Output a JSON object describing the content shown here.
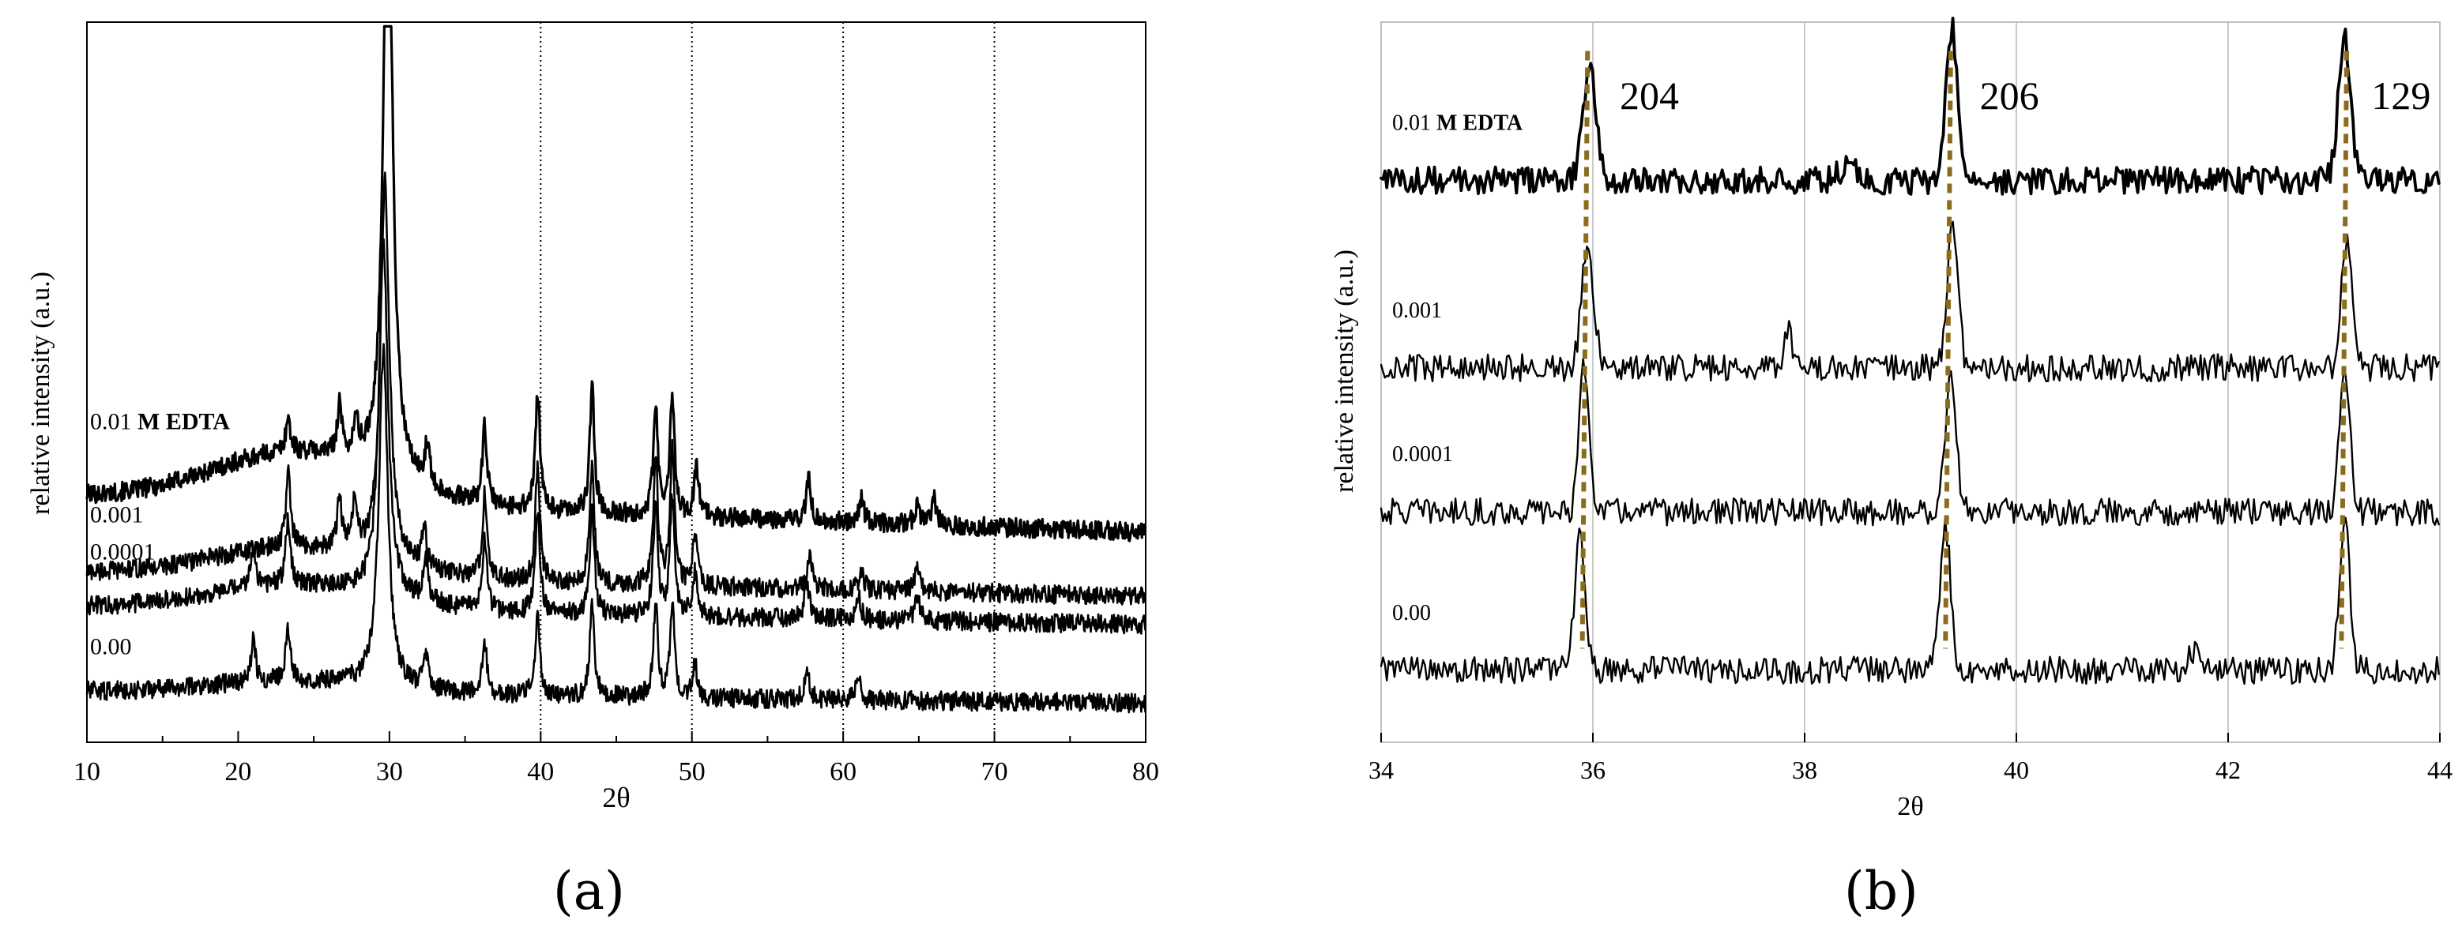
{
  "chart_data": [
    {
      "panel": "a",
      "type": "line",
      "caption": "(a)",
      "xlabel": "2θ",
      "ylabel": "relative intensity (a.u.)",
      "xlim": [
        10,
        80
      ],
      "xticks": [
        "10",
        "20",
        "30",
        "40",
        "50",
        "60",
        "70",
        "80"
      ],
      "grid_x": [
        40,
        50,
        60,
        70
      ],
      "series": [
        {
          "name": "0.01 M EDTA",
          "name_prefix": "0.01",
          "name_bold": "M EDTA",
          "baseline": 0.58,
          "slope": 0.0012,
          "hump": 0.12,
          "peaks": [
            [
              23.3,
              0.08
            ],
            [
              26.7,
              0.12
            ],
            [
              27.8,
              0.08
            ],
            [
              29.9,
              1.55
            ],
            [
              32.5,
              0.1
            ],
            [
              36.3,
              0.18
            ],
            [
              39.8,
              0.28
            ],
            [
              43.4,
              0.3
            ],
            [
              47.6,
              0.25
            ],
            [
              48.7,
              0.28
            ],
            [
              50.3,
              0.12
            ],
            [
              57.7,
              0.1
            ],
            [
              61.2,
              0.06
            ],
            [
              64.9,
              0.05
            ],
            [
              66.0,
              0.06
            ]
          ]
        },
        {
          "name": "0.001",
          "baseline": 0.4,
          "slope": 0.0008,
          "hump": 0.07,
          "peaks": [
            [
              23.3,
              0.18
            ],
            [
              26.7,
              0.12
            ],
            [
              27.7,
              0.12
            ],
            [
              29.7,
              0.9
            ],
            [
              32.3,
              0.1
            ],
            [
              36.3,
              0.2
            ],
            [
              39.8,
              0.28
            ],
            [
              43.4,
              0.28
            ],
            [
              47.6,
              0.3
            ],
            [
              48.7,
              0.32
            ],
            [
              50.2,
              0.12
            ],
            [
              57.8,
              0.08
            ],
            [
              61.2,
              0.05
            ],
            [
              64.9,
              0.05
            ]
          ]
        },
        {
          "name": "0.0001",
          "baseline": 0.32,
          "slope": 0.0006,
          "hump": 0.06,
          "peaks": [
            [
              21.0,
              0.1
            ],
            [
              23.3,
              0.16
            ],
            [
              29.6,
              0.85
            ],
            [
              32.4,
              0.1
            ],
            [
              36.3,
              0.17
            ],
            [
              39.8,
              0.25
            ],
            [
              43.4,
              0.25
            ],
            [
              47.6,
              0.27
            ],
            [
              48.7,
              0.28
            ],
            [
              50.2,
              0.1
            ],
            [
              57.6,
              0.09
            ],
            [
              61.0,
              0.06
            ],
            [
              64.9,
              0.06
            ]
          ]
        },
        {
          "name": "0.00",
          "baseline": 0.12,
          "slope": 0.0004,
          "hump": 0.03,
          "peaks": [
            [
              21.0,
              0.1
            ],
            [
              23.3,
              0.12
            ],
            [
              29.6,
              0.8
            ],
            [
              32.4,
              0.08
            ],
            [
              36.3,
              0.12
            ],
            [
              39.8,
              0.2
            ],
            [
              43.4,
              0.22
            ],
            [
              47.6,
              0.22
            ],
            [
              48.7,
              0.22
            ],
            [
              50.2,
              0.08
            ],
            [
              57.6,
              0.07
            ],
            [
              61.0,
              0.05
            ]
          ]
        }
      ]
    },
    {
      "panel": "b",
      "type": "line",
      "caption": "(b)",
      "xlabel": "2θ",
      "ylabel": "relative intensity (a.u.)",
      "xlim": [
        34,
        44
      ],
      "xticks": [
        "34",
        "36",
        "38",
        "40",
        "42",
        "44"
      ],
      "grid_x": [
        36,
        38,
        40,
        42
      ],
      "peak_labels": [
        {
          "x": 36.0,
          "text": "204"
        },
        {
          "x": 39.4,
          "text": "206"
        },
        {
          "x": 43.1,
          "text": "129"
        }
      ],
      "guide_lines": [
        35.95,
        39.38,
        43.12
      ],
      "series": [
        {
          "name": "0.01 M EDTA",
          "name_prefix": "0.01",
          "name_bold": "M EDTA",
          "baseline": 0.78,
          "peaks": [
            [
              35.97,
              0.15,
              0.09
            ],
            [
              38.4,
              0.02,
              0.1
            ],
            [
              39.39,
              0.21,
              0.08
            ],
            [
              43.1,
              0.2,
              0.08
            ]
          ]
        },
        {
          "name": "0.001",
          "baseline": 0.52,
          "peaks": [
            [
              35.95,
              0.17,
              0.08
            ],
            [
              37.85,
              0.05,
              0.05
            ],
            [
              39.4,
              0.2,
              0.07
            ],
            [
              43.12,
              0.18,
              0.07
            ]
          ]
        },
        {
          "name": "0.0001",
          "baseline": 0.32,
          "peaks": [
            [
              35.92,
              0.2,
              0.07
            ],
            [
              39.38,
              0.2,
              0.07
            ],
            [
              43.1,
              0.2,
              0.07
            ]
          ]
        },
        {
          "name": "0.00",
          "baseline": 0.1,
          "peaks": [
            [
              35.88,
              0.19,
              0.07
            ],
            [
              39.33,
              0.2,
              0.07
            ],
            [
              41.7,
              0.03,
              0.08
            ],
            [
              43.1,
              0.21,
              0.07
            ]
          ]
        }
      ]
    }
  ]
}
